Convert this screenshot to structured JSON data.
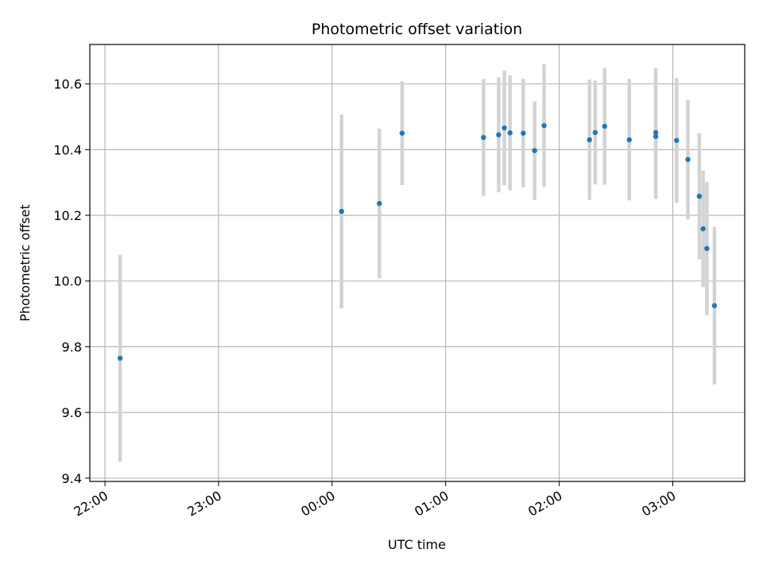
{
  "chart_data": {
    "type": "scatter",
    "title": "Photometric offset variation",
    "xlabel": "UTC time",
    "ylabel": "Photometric offset",
    "grid": true,
    "x_ticks": [
      "22:00",
      "23:00",
      "00:00",
      "01:00",
      "02:00",
      "03:00"
    ],
    "y_ticks": [
      "9.4",
      "9.6",
      "9.8",
      "10.0",
      "10.2",
      "10.4",
      "10.6"
    ],
    "y_tick_values": [
      9.4,
      9.6,
      9.8,
      10.0,
      10.2,
      10.4,
      10.6
    ],
    "xlim": [
      "21:52",
      "03:38"
    ],
    "ylim": [
      9.39,
      10.72
    ],
    "colors": {
      "point": "#1f77b4",
      "errorbar": "#d3d3d3",
      "grid": "#b0b0b0"
    },
    "series": [
      {
        "points": [
          {
            "t": "22:08",
            "y": 9.765,
            "err": 0.315
          },
          {
            "t": "00:05",
            "y": 10.212,
            "err": 0.295
          },
          {
            "t": "00:25",
            "y": 10.236,
            "err": 0.228
          },
          {
            "t": "00:37",
            "y": 10.45,
            "err": 0.158
          },
          {
            "t": "01:20",
            "y": 10.437,
            "err": 0.178
          },
          {
            "t": "01:28",
            "y": 10.445,
            "err": 0.175
          },
          {
            "t": "01:31",
            "y": 10.466,
            "err": 0.175
          },
          {
            "t": "01:34",
            "y": 10.451,
            "err": 0.175
          },
          {
            "t": "01:41",
            "y": 10.45,
            "err": 0.165
          },
          {
            "t": "01:47",
            "y": 10.397,
            "err": 0.15
          },
          {
            "t": "01:52",
            "y": 10.473,
            "err": 0.187
          },
          {
            "t": "02:16",
            "y": 10.43,
            "err": 0.183
          },
          {
            "t": "02:19",
            "y": 10.452,
            "err": 0.158
          },
          {
            "t": "02:24",
            "y": 10.471,
            "err": 0.178
          },
          {
            "t": "02:37",
            "y": 10.43,
            "err": 0.185
          },
          {
            "t": "02:51",
            "y": 10.44,
            "err": 0.19
          },
          {
            "t": "02:51",
            "y": 10.452,
            "err": 0.197
          },
          {
            "t": "03:02",
            "y": 10.428,
            "err": 0.19
          },
          {
            "t": "03:08",
            "y": 10.37,
            "err": 0.182
          },
          {
            "t": "03:14",
            "y": 10.258,
            "err": 0.192
          },
          {
            "t": "03:16",
            "y": 10.159,
            "err": 0.177
          },
          {
            "t": "03:18",
            "y": 10.099,
            "err": 0.203
          },
          {
            "t": "03:22",
            "y": 9.925,
            "err": 0.24
          }
        ]
      }
    ]
  }
}
